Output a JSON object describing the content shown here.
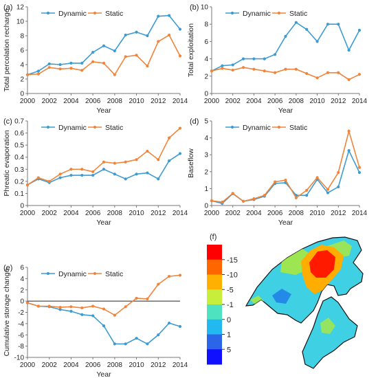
{
  "series_colors": {
    "Dynamic": "#3d9bd1",
    "Static": "#f0843a"
  },
  "chart_data": [
    {
      "panel": "(a)",
      "type": "line",
      "xlabel": "Year",
      "ylabel": "Total percolation recharge",
      "x": [
        2000,
        2001,
        2002,
        2003,
        2004,
        2005,
        2006,
        2007,
        2008,
        2009,
        2010,
        2011,
        2012,
        2013,
        2014
      ],
      "xticks": [
        2000,
        2002,
        2004,
        2006,
        2008,
        2010,
        2012,
        2014
      ],
      "ylim": [
        0,
        12
      ],
      "yticks": [
        0,
        2,
        4,
        6,
        8,
        10,
        12
      ],
      "legend": "top-left",
      "series": [
        {
          "name": "Dynamic",
          "values": [
            2.6,
            3.1,
            4.1,
            4.0,
            4.2,
            4.2,
            5.7,
            6.6,
            5.9,
            8.1,
            8.5,
            8.0,
            10.7,
            10.8,
            8.9
          ]
        },
        {
          "name": "Static",
          "values": [
            2.6,
            2.7,
            3.6,
            3.4,
            3.5,
            3.2,
            4.4,
            4.2,
            2.6,
            5.1,
            5.3,
            3.8,
            7.2,
            8.1,
            5.2
          ]
        }
      ]
    },
    {
      "panel": "(b)",
      "type": "line",
      "xlabel": "Year",
      "ylabel": "Total exploitation",
      "x": [
        2000,
        2001,
        2002,
        2003,
        2004,
        2005,
        2006,
        2007,
        2008,
        2009,
        2010,
        2011,
        2012,
        2013,
        2014
      ],
      "xticks": [
        2000,
        2002,
        2004,
        2006,
        2008,
        2010,
        2012,
        2014
      ],
      "ylim": [
        0,
        10
      ],
      "yticks": [
        0,
        2,
        4,
        6,
        8,
        10
      ],
      "legend": "top-left",
      "series": [
        {
          "name": "Dynamic",
          "values": [
            2.6,
            3.2,
            3.3,
            4.0,
            4.0,
            4.0,
            4.5,
            6.6,
            8.2,
            7.4,
            6.0,
            8.0,
            8.0,
            5.0,
            7.3
          ]
        },
        {
          "name": "Static",
          "values": [
            2.6,
            2.9,
            2.7,
            3.0,
            2.8,
            2.6,
            2.4,
            2.8,
            2.8,
            2.3,
            1.8,
            2.4,
            2.4,
            1.6,
            2.2
          ]
        }
      ]
    },
    {
      "panel": "(c)",
      "type": "line",
      "xlabel": "Year",
      "ylabel": "Phreatic evaporation",
      "x": [
        2000,
        2001,
        2002,
        2003,
        2004,
        2005,
        2006,
        2007,
        2008,
        2009,
        2010,
        2011,
        2012,
        2013,
        2014
      ],
      "xticks": [
        2000,
        2002,
        2004,
        2006,
        2008,
        2010,
        2012,
        2014
      ],
      "ylim": [
        0,
        0.7
      ],
      "yticks": [
        0,
        0.1,
        0.2,
        0.3,
        0.4,
        0.5,
        0.6,
        0.7
      ],
      "legend": "top-left",
      "series": [
        {
          "name": "Dynamic",
          "values": [
            0.17,
            0.22,
            0.19,
            0.23,
            0.25,
            0.25,
            0.25,
            0.3,
            0.26,
            0.22,
            0.26,
            0.27,
            0.22,
            0.37,
            0.43
          ]
        },
        {
          "name": "Static",
          "values": [
            0.17,
            0.23,
            0.2,
            0.26,
            0.3,
            0.3,
            0.28,
            0.36,
            0.35,
            0.36,
            0.38,
            0.45,
            0.38,
            0.56,
            0.64
          ]
        }
      ]
    },
    {
      "panel": "(d)",
      "type": "line",
      "xlabel": "Year",
      "ylabel": "Baseflow",
      "x": [
        2000,
        2001,
        2002,
        2003,
        2004,
        2005,
        2006,
        2007,
        2008,
        2009,
        2010,
        2011,
        2012,
        2013,
        2014
      ],
      "xticks": [
        2000,
        2002,
        2004,
        2006,
        2008,
        2010,
        2012,
        2014
      ],
      "ylim": [
        0,
        5
      ],
      "yticks": [
        0,
        1,
        2,
        3,
        4,
        5
      ],
      "legend": "top-left",
      "series": [
        {
          "name": "Dynamic",
          "values": [
            0.28,
            0.12,
            0.7,
            0.25,
            0.35,
            0.55,
            1.3,
            1.35,
            0.6,
            0.6,
            1.55,
            0.75,
            1.1,
            3.25,
            1.95
          ]
        },
        {
          "name": "Static",
          "values": [
            0.28,
            0.2,
            0.72,
            0.25,
            0.4,
            0.6,
            1.4,
            1.5,
            0.45,
            0.9,
            1.65,
            0.95,
            1.95,
            4.4,
            2.25
          ]
        }
      ]
    },
    {
      "panel": "(e)",
      "type": "line",
      "xlabel": "Year",
      "ylabel": "Cumulative storage change",
      "x": [
        2000,
        2001,
        2002,
        2003,
        2004,
        2005,
        2006,
        2007,
        2008,
        2009,
        2010,
        2011,
        2012,
        2013,
        2014
      ],
      "xticks": [
        2000,
        2002,
        2004,
        2006,
        2008,
        2010,
        2012,
        2014
      ],
      "ylim": [
        -10,
        6
      ],
      "yticks": [
        -10,
        -8,
        -6,
        -4,
        -2,
        0,
        2,
        4,
        6
      ],
      "zero_line": true,
      "legend": "top-left",
      "series": [
        {
          "name": "Dynamic",
          "values": [
            -0.3,
            -0.9,
            -1.0,
            -1.5,
            -1.8,
            -2.4,
            -2.6,
            -4.4,
            -7.6,
            -7.6,
            -6.6,
            -7.6,
            -6.0,
            -3.9,
            -4.5
          ]
        },
        {
          "name": "Static",
          "values": [
            -0.3,
            -0.9,
            -0.9,
            -1.1,
            -1.0,
            -1.2,
            -0.9,
            -1.4,
            -2.5,
            -1.0,
            0.5,
            0.4,
            3.0,
            4.4,
            4.6
          ]
        }
      ]
    }
  ],
  "map": {
    "panel": "(f)",
    "legend_labels": [
      "-15",
      "-10",
      "-5",
      "-1",
      "0",
      "1",
      "5"
    ],
    "legend_colors": [
      "#ff0000",
      "#ff6600",
      "#ffb000",
      "#c8ee3c",
      "#4fe2c0",
      "#22b8f0",
      "#2b66e8",
      "#1010ff"
    ],
    "region_colors": {
      "base": "#3fd0e4",
      "mid": "#a3e64a",
      "high": "#ffad00",
      "peak": "#ff1a00",
      "low": "#1e7fe8"
    }
  }
}
